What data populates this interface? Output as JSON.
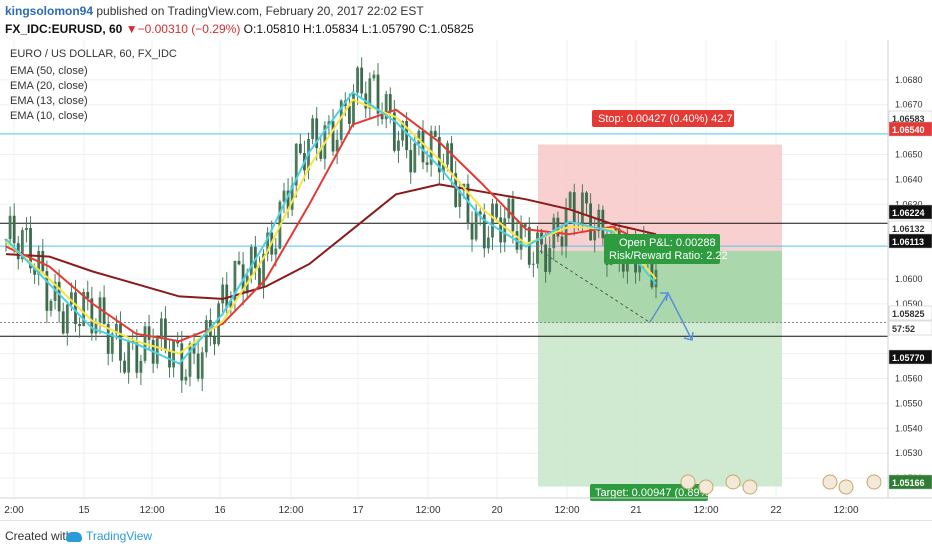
{
  "header": {
    "author": "kingsolomon94",
    "published_text": " published on TradingView.com, February 20, 2017 22:02 EST",
    "symbol": "FX_IDC:EURUSD, 60",
    "change": "▼−0.00310 (−0.29%)",
    "ohlc": " O:1.05810 H:1.05834 L:1.05790 C:1.05825"
  },
  "legend": {
    "title": "EURO / US DOLLAR, 60, FX_IDC",
    "ema_labels": [
      "EMA (50, close)",
      "EMA (20, close)",
      "EMA (13, close)",
      "EMA (10, close)"
    ]
  },
  "position": {
    "stop_label": "Stop: 0.00427 (0.40%) 42.7",
    "pnl_label": "Open P&L: 0.00288",
    "rr_label": "Risk/Reward Ratio: 2.22",
    "target_label": "Target: 0.00947 (0.89%)"
  },
  "footer": {
    "created_with": "Created with",
    "brand": "TradingView"
  },
  "colors": {
    "candle": "#4a7a5a",
    "ema50": "#8b1a1a",
    "ema20": "#e53935",
    "ema13": "#f5e642",
    "ema10": "#4dd0e1",
    "stop_zone": "#f8c8c8",
    "target_zone": "#a5d6a7",
    "axis_text": "#333333"
  },
  "chart_data": {
    "type": "candlestick",
    "title": "EURO / US DOLLAR, 60, FX_IDC",
    "ylim": [
      1.0512,
      1.0696
    ],
    "y_ticks": [
      1.068,
      1.067,
      1.065,
      1.064,
      1.063,
      1.06,
      1.059,
      1.057,
      1.056,
      1.055,
      1.054,
      1.053,
      1.052
    ],
    "x_tick_labels": [
      "2:00",
      "15",
      "12:00",
      "16",
      "12:00",
      "17",
      "12:00",
      "20",
      "12:00",
      "21",
      "12:00",
      "22",
      "12:00"
    ],
    "price_markers": [
      {
        "value": "1.06583",
        "color": "#ffffff",
        "text": "#333333"
      },
      {
        "value": "1.06540",
        "color": "#e53935",
        "text": "#ffffff"
      },
      {
        "value": "1.06224",
        "color": "#111111",
        "text": "#ffffff"
      },
      {
        "value": "1.06132",
        "color": "#ffffff",
        "text": "#333333"
      },
      {
        "value": "1.06113",
        "color": "#111111",
        "text": "#ffffff"
      },
      {
        "value": "1.05825",
        "color": "#ffffff",
        "text": "#333333"
      },
      {
        "value": "57:52",
        "color": "#ffffff",
        "text": "#333333"
      },
      {
        "value": "1.05770",
        "color": "#111111",
        "text": "#ffffff"
      },
      {
        "value": "1.05166",
        "color": "#2e7d32",
        "text": "#ffffff"
      }
    ],
    "horizontal_levels": [
      {
        "price": 1.06583,
        "color": "#4fc3f7"
      },
      {
        "price": 1.06224,
        "color": "#111111"
      },
      {
        "price": 1.06132,
        "color": "#4fc3f7"
      },
      {
        "price": 1.05825,
        "color": "#888888",
        "dashed": true
      },
      {
        "price": 1.0577,
        "color": "#111111"
      }
    ],
    "position_tool": {
      "entry": 1.06113,
      "stop": 1.0654,
      "target": 1.05166
    },
    "ema_series": [
      {
        "name": "EMA (50, close)",
        "values": [
          1.061,
          1.0609,
          1.0603,
          1.0598,
          1.0593,
          1.0592,
          1.0597,
          1.0606,
          1.062,
          1.0634,
          1.0638,
          1.0635,
          1.0632,
          1.0628,
          1.0622,
          1.0618
        ]
      },
      {
        "name": "EMA (20, close)",
        "values": [
          1.0613,
          1.0605,
          1.059,
          1.0578,
          1.0575,
          1.0582,
          1.06,
          1.063,
          1.0662,
          1.0668,
          1.0655,
          1.0638,
          1.062,
          1.0618,
          1.0621,
          1.0612
        ]
      },
      {
        "name": "EMA (13, close)",
        "values": [
          1.0615,
          1.06,
          1.0583,
          1.0575,
          1.057,
          1.0583,
          1.061,
          1.0645,
          1.0672,
          1.0665,
          1.0648,
          1.0628,
          1.0614,
          1.0621,
          1.062,
          1.06
        ]
      },
      {
        "name": "EMA (10, close)",
        "values": [
          1.0616,
          1.0598,
          1.058,
          1.0574,
          1.0566,
          1.0586,
          1.0615,
          1.0651,
          1.0675,
          1.0663,
          1.0645,
          1.0624,
          1.0613,
          1.0623,
          1.0619,
          1.0598
        ]
      }
    ]
  }
}
